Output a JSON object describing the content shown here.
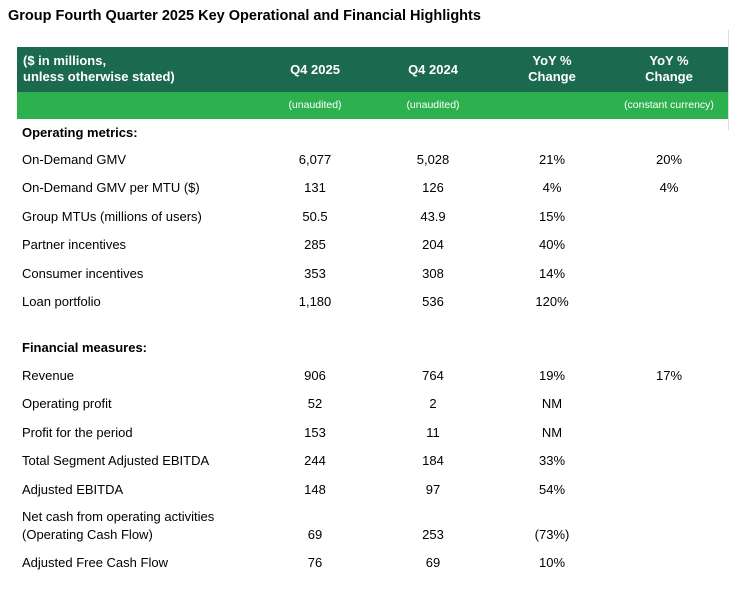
{
  "title": "Group Fourth Quarter 2025 Key Operational and Financial Highlights",
  "header": {
    "label_line1": "($ in millions,",
    "label_line2": "unless otherwise stated)",
    "q4_2025": "Q4 2025",
    "q4_2024": "Q4 2024",
    "yoy_line1": "YoY %",
    "yoy_line2": "Change",
    "yoycc_line1": "YoY %",
    "yoycc_line2": "Change"
  },
  "subheader": {
    "q4_2025": "(unaudited)",
    "q4_2024": "(unaudited)",
    "yoy": "",
    "yoycc": "(constant currency)"
  },
  "sections": [
    {
      "title": "Operating metrics:",
      "rows": [
        {
          "label": "On-Demand GMV",
          "q4_2025": "6,077",
          "q4_2024": "5,028",
          "yoy": "21%",
          "yoycc": "20%"
        },
        {
          "label": "On-Demand GMV per MTU ($)",
          "q4_2025": "131",
          "q4_2024": "126",
          "yoy": "4%",
          "yoycc": "4%"
        },
        {
          "label": "Group MTUs (millions of users)",
          "q4_2025": "50.5",
          "q4_2024": "43.9",
          "yoy": "15%",
          "yoycc": ""
        },
        {
          "label": "Partner incentives",
          "q4_2025": "285",
          "q4_2024": "204",
          "yoy": "40%",
          "yoycc": ""
        },
        {
          "label": "Consumer incentives",
          "q4_2025": "353",
          "q4_2024": "308",
          "yoy": "14%",
          "yoycc": ""
        },
        {
          "label": "Loan portfolio",
          "q4_2025": "1,180",
          "q4_2024": "536",
          "yoy": "120%",
          "yoycc": ""
        }
      ]
    },
    {
      "title": "Financial measures:",
      "rows": [
        {
          "label": "Revenue",
          "q4_2025": "906",
          "q4_2024": "764",
          "yoy": "19%",
          "yoycc": "17%"
        },
        {
          "label": "Operating profit",
          "q4_2025": "52",
          "q4_2024": "2",
          "yoy": "NM",
          "yoycc": ""
        },
        {
          "label": "Profit for the period",
          "q4_2025": "153",
          "q4_2024": "11",
          "yoy": "NM",
          "yoycc": ""
        },
        {
          "label": "Total Segment Adjusted EBITDA",
          "q4_2025": "244",
          "q4_2024": "184",
          "yoy": "33%",
          "yoycc": ""
        },
        {
          "label": "Adjusted EBITDA",
          "q4_2025": "148",
          "q4_2024": "97",
          "yoy": "54%",
          "yoycc": ""
        },
        {
          "label": "Net cash from operating activities",
          "label2": "(Operating Cash Flow)",
          "q4_2025": "69",
          "q4_2024": "253",
          "yoy": "(73%)",
          "yoycc": ""
        },
        {
          "label": "Adjusted Free Cash Flow",
          "q4_2025": "76",
          "q4_2024": "69",
          "yoy": "10%",
          "yoycc": ""
        }
      ]
    }
  ],
  "colors": {
    "header_dark": "#1b6a4f",
    "header_light": "#2db14f"
  }
}
